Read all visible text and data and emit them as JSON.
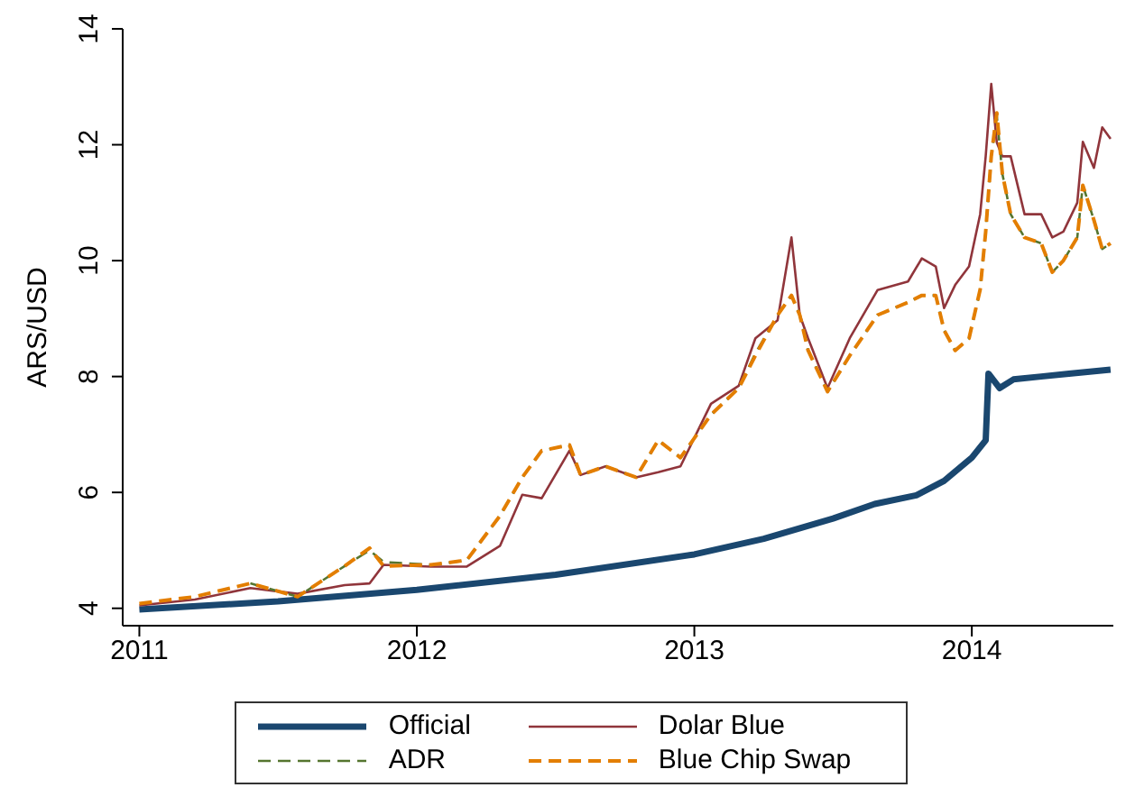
{
  "chart_data": {
    "type": "line",
    "ylabel": "ARS/USD",
    "xlim": [
      2010.94,
      2014.51
    ],
    "xticks": [
      2011,
      2012,
      2013,
      2014
    ],
    "ylim": [
      3.7,
      14
    ],
    "yticks": [
      4,
      6,
      8,
      10,
      12,
      14
    ],
    "grid": false,
    "legend": "bottom",
    "marker": "none",
    "x": [
      2011.0,
      2011.2,
      2011.4,
      2011.57,
      2011.74,
      2011.83,
      2011.88,
      2012.05,
      2012.18,
      2012.3,
      2012.38,
      2012.45,
      2012.55,
      2012.59,
      2012.68,
      2012.79,
      2012.87,
      2012.95,
      2013.06,
      2013.16,
      2013.22,
      2013.3,
      2013.35,
      2013.38,
      2013.41,
      2013.48,
      2013.56,
      2013.66,
      2013.77,
      2013.82,
      2013.87,
      2013.9,
      2013.94,
      2013.99,
      2014.03,
      2014.05,
      2014.07,
      2014.09,
      2014.11,
      2014.14,
      2014.19,
      2014.25,
      2014.29,
      2014.33,
      2014.38,
      2014.4,
      2014.44,
      2014.47,
      2014.5
    ],
    "series": [
      {
        "name": "Official",
        "color": "#1a476f",
        "line_style": "solid",
        "x": [
          2011,
          2011.5,
          2012,
          2012.5,
          2013,
          2013.25,
          2013.5,
          2013.65,
          2013.8,
          2013.9,
          2014.0,
          2014.05,
          2014.06,
          2014.1,
          2014.15,
          2014.25,
          2014.35,
          2014.5
        ],
        "values": [
          3.98,
          4.12,
          4.32,
          4.58,
          4.93,
          5.2,
          5.55,
          5.8,
          5.95,
          6.2,
          6.6,
          6.9,
          8.05,
          7.8,
          7.95,
          8.0,
          8.05,
          8.12
        ]
      },
      {
        "name": "Dolar Blue",
        "color": "#90353b",
        "line_style": "solid",
        "values": [
          4.05,
          4.15,
          4.35,
          4.25,
          4.4,
          4.43,
          4.75,
          4.72,
          4.72,
          5.08,
          5.96,
          5.9,
          6.72,
          6.3,
          6.45,
          6.26,
          6.35,
          6.45,
          7.53,
          7.84,
          8.66,
          8.97,
          10.4,
          9.06,
          8.66,
          7.8,
          8.66,
          9.49,
          9.64,
          10.04,
          9.9,
          9.18,
          9.58,
          9.9,
          10.8,
          11.8,
          13.05,
          12.04,
          11.8,
          11.8,
          10.8,
          10.8,
          10.4,
          10.5,
          11.0,
          12.05,
          11.6,
          12.3,
          12.1
        ]
      },
      {
        "name": "ADR",
        "color": "#55752f",
        "line_style": "dashed",
        "values": [
          null,
          null,
          4.43,
          4.2,
          4.73,
          5.0,
          4.8,
          4.75,
          4.83,
          5.6,
          6.26,
          6.72,
          6.82,
          6.3,
          6.45,
          6.26,
          6.9,
          6.6,
          7.34,
          7.8,
          8.4,
          9.06,
          9.4,
          9.06,
          8.45,
          7.74,
          8.36,
          9.06,
          9.28,
          9.4,
          9.4,
          8.8,
          8.45,
          8.66,
          9.5,
          10.5,
          11.8,
          12.5,
          11.5,
          10.8,
          10.4,
          10.3,
          9.8,
          10.0,
          10.4,
          11.3,
          10.7,
          10.2,
          10.3
        ]
      },
      {
        "name": "Blue Chip Swap",
        "color": "#e37e00",
        "line_style": "dashed",
        "values": [
          4.08,
          4.2,
          4.43,
          4.2,
          4.73,
          5.04,
          4.73,
          4.75,
          4.83,
          5.6,
          6.26,
          6.72,
          6.82,
          6.3,
          6.45,
          6.26,
          6.9,
          6.6,
          7.34,
          7.8,
          8.36,
          9.06,
          9.4,
          9.06,
          8.45,
          7.74,
          8.36,
          9.06,
          9.28,
          9.4,
          9.4,
          8.8,
          8.45,
          8.66,
          9.5,
          10.5,
          11.8,
          12.55,
          11.5,
          10.8,
          10.4,
          10.3,
          9.8,
          10.0,
          10.4,
          11.3,
          10.7,
          10.2,
          10.3
        ]
      }
    ]
  }
}
